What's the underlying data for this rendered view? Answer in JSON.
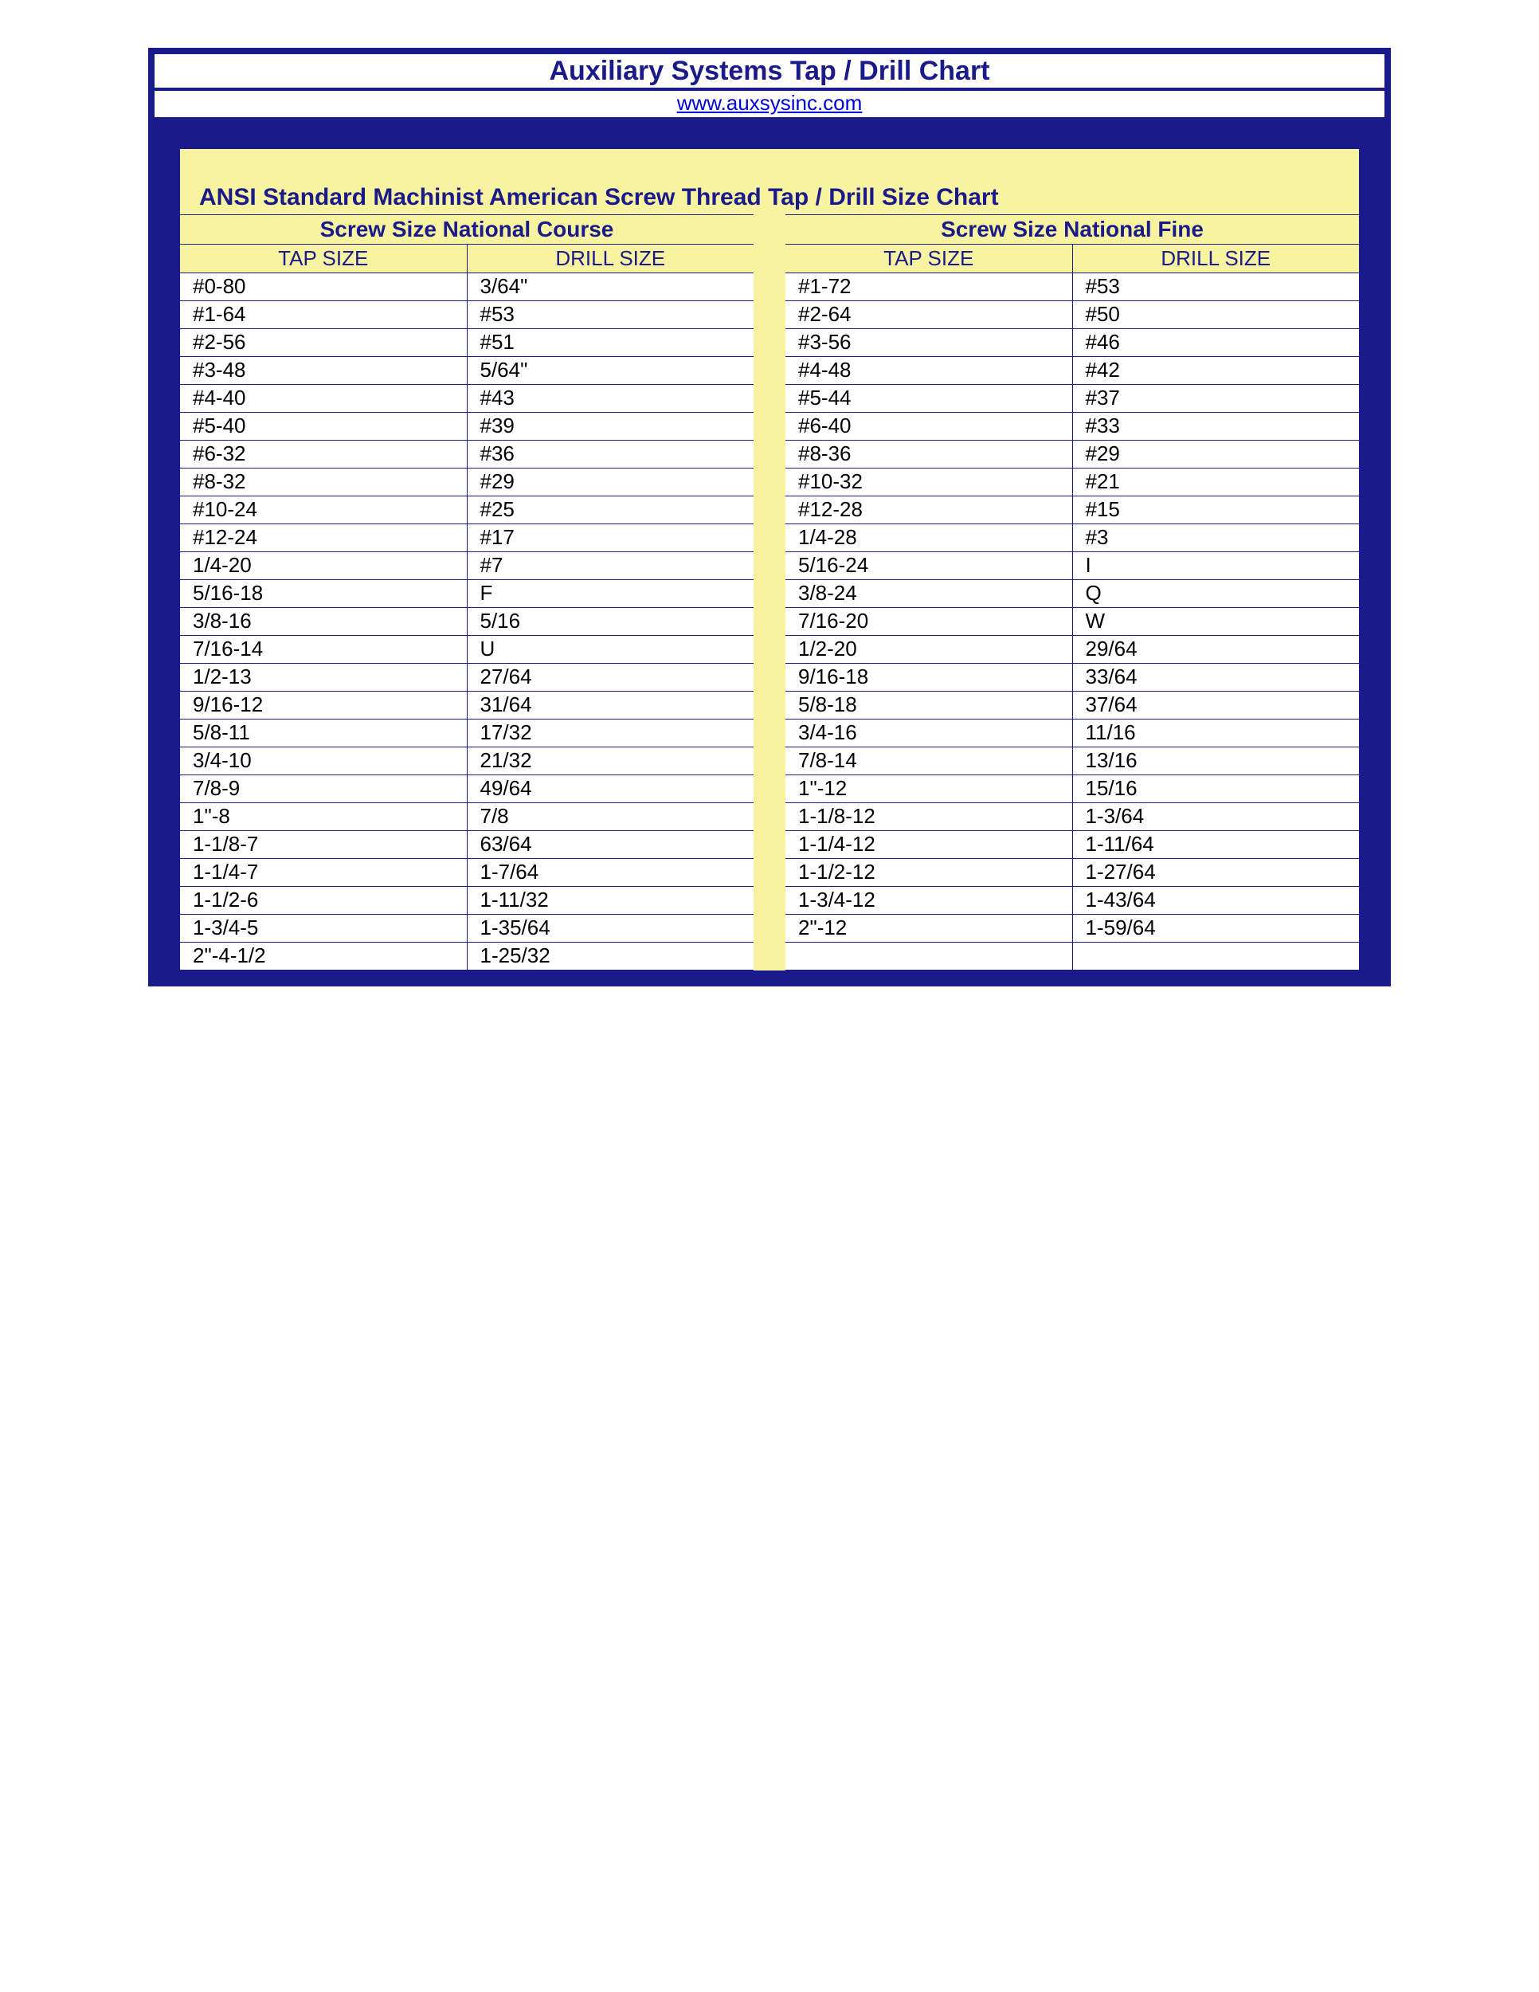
{
  "colors": {
    "frame": "#1a1a8a",
    "yellow": "#f7f3a0",
    "white": "#ffffff",
    "text_dark": "#000000",
    "link": "#0000dd"
  },
  "header": {
    "title": "Auxiliary Systems Tap / Drill Chart",
    "url_text": "www.auxsysinc.com"
  },
  "subtitle": "ANSI Standard Machinist American Screw Thread Tap / Drill Size Chart",
  "left_table": {
    "section_title": "Screw Size National Course",
    "columns": [
      "TAP SIZE",
      "DRILL SIZE"
    ],
    "rows": [
      [
        "#0-80",
        "3/64\""
      ],
      [
        "#1-64",
        "#53"
      ],
      [
        "#2-56",
        "#51"
      ],
      [
        "#3-48",
        "5/64\""
      ],
      [
        "#4-40",
        "#43"
      ],
      [
        "#5-40",
        "#39"
      ],
      [
        "#6-32",
        "#36"
      ],
      [
        "#8-32",
        "#29"
      ],
      [
        "#10-24",
        "#25"
      ],
      [
        "#12-24",
        "#17"
      ],
      [
        "1/4-20",
        "#7"
      ],
      [
        "5/16-18",
        "F"
      ],
      [
        "3/8-16",
        "5/16"
      ],
      [
        "7/16-14",
        "U"
      ],
      [
        "1/2-13",
        "27/64"
      ],
      [
        "9/16-12",
        "31/64"
      ],
      [
        "5/8-11",
        "17/32"
      ],
      [
        "3/4-10",
        "21/32"
      ],
      [
        "7/8-9",
        "49/64"
      ],
      [
        "1\"-8",
        "7/8"
      ],
      [
        "1-1/8-7",
        "63/64"
      ],
      [
        "1-1/4-7",
        "1-7/64"
      ],
      [
        "1-1/2-6",
        "1-11/32"
      ],
      [
        "1-3/4-5",
        "1-35/64"
      ],
      [
        "2\"-4-1/2",
        "1-25/32"
      ]
    ]
  },
  "right_table": {
    "section_title": "Screw Size National Fine",
    "columns": [
      "TAP SIZE",
      "DRILL SIZE"
    ],
    "rows": [
      [
        "#1-72",
        "#53"
      ],
      [
        "#2-64",
        "#50"
      ],
      [
        "#3-56",
        "#46"
      ],
      [
        "#4-48",
        "#42"
      ],
      [
        "#5-44",
        "#37"
      ],
      [
        "#6-40",
        "#33"
      ],
      [
        "#8-36",
        "#29"
      ],
      [
        "#10-32",
        "#21"
      ],
      [
        "#12-28",
        "#15"
      ],
      [
        "1/4-28",
        "#3"
      ],
      [
        "5/16-24",
        "I"
      ],
      [
        "3/8-24",
        "Q"
      ],
      [
        "7/16-20",
        "W"
      ],
      [
        "1/2-20",
        "29/64"
      ],
      [
        "9/16-18",
        "33/64"
      ],
      [
        "5/8-18",
        "37/64"
      ],
      [
        "3/4-16",
        "11/16"
      ],
      [
        "7/8-14",
        "13/16"
      ],
      [
        "1\"-12",
        "15/16"
      ],
      [
        "1-1/8-12",
        "1-3/64"
      ],
      [
        "1-1/4-12",
        "1-11/64"
      ],
      [
        "1-1/2-12",
        "1-27/64"
      ],
      [
        "1-3/4-12",
        "1-43/64"
      ],
      [
        "2\"-12",
        "1-59/64"
      ],
      [
        "",
        ""
      ]
    ]
  }
}
